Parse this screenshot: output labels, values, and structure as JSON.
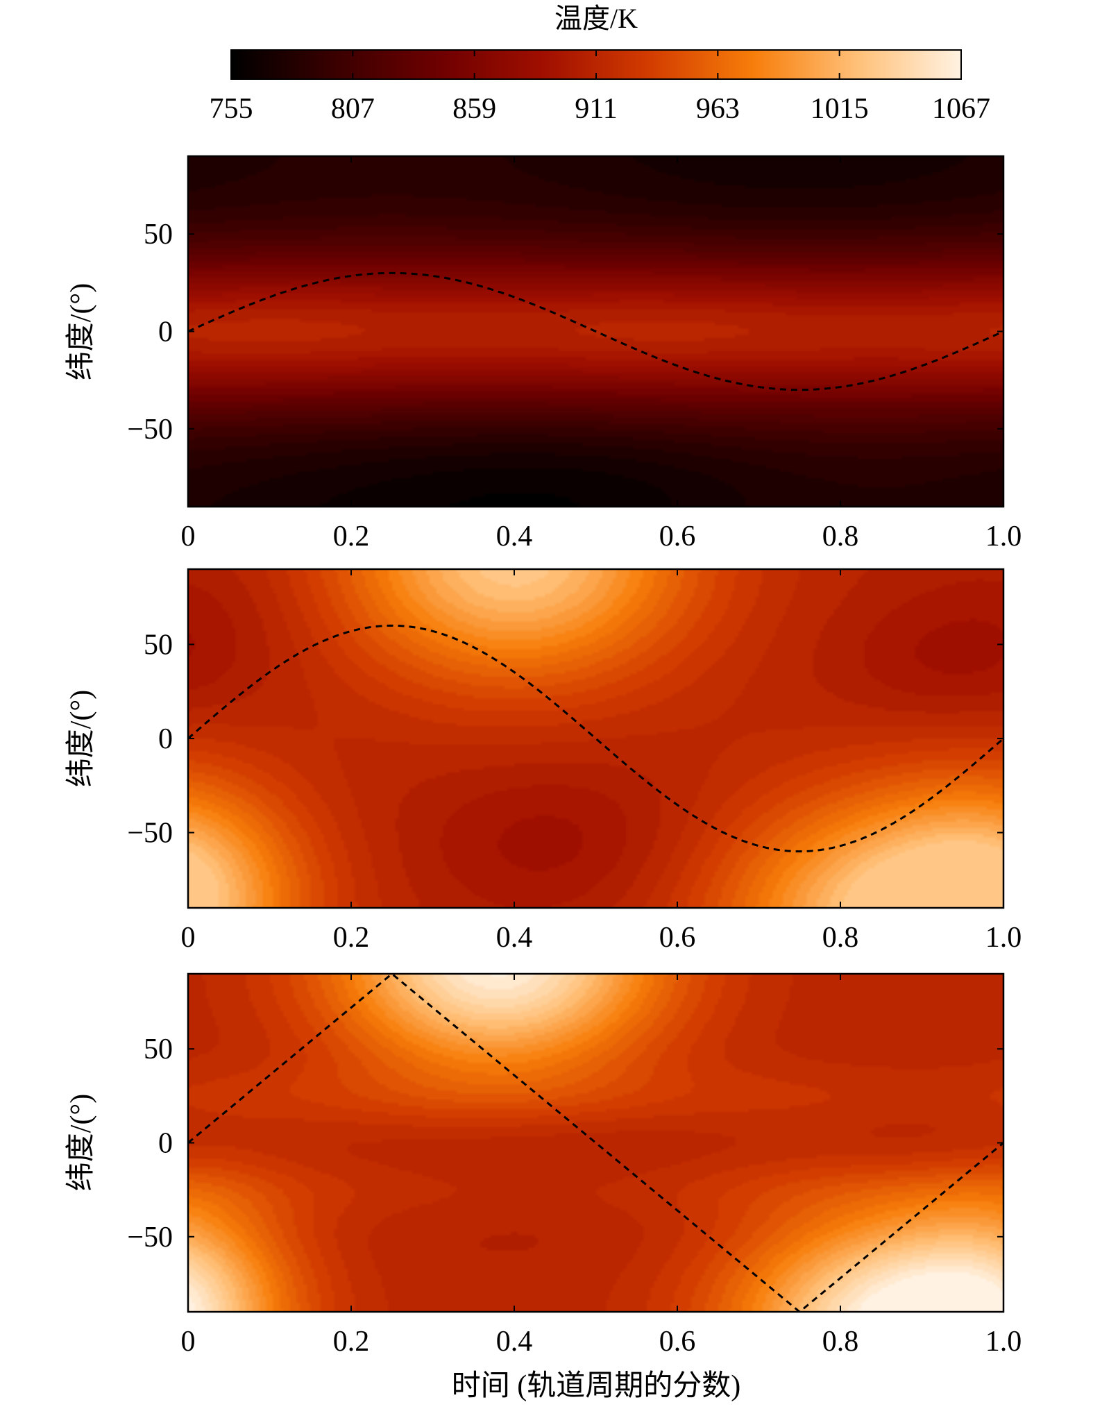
{
  "chart_data": {
    "type": "heatmap",
    "colorbar": {
      "label": "温度/K",
      "ticks": [
        755,
        807,
        859,
        911,
        963,
        1015,
        1067
      ],
      "range": [
        755,
        1067
      ],
      "colormap": "gist_heat",
      "color_stops": [
        "#000000",
        "#3a0000",
        "#6e0000",
        "#a00f00",
        "#d23c00",
        "#f77d0a",
        "#ffc078",
        "#fff2e2"
      ]
    },
    "xlabel": "时间 (轨道周期的分数)",
    "panels": [
      {
        "ylabel": "纬度/(°)",
        "x_ticks": [
          "0",
          "0.2",
          "0.4",
          "0.6",
          "0.8",
          "1.0"
        ],
        "y_ticks": [
          "50",
          "0",
          "−50"
        ],
        "xlim": [
          0,
          1
        ],
        "ylim": [
          -90,
          90
        ],
        "subsolar_amplitude_deg": 30,
        "subsolar_shape": "sine",
        "temperature_range": [
          755,
          925
        ]
      },
      {
        "ylabel": "纬度/(°)",
        "x_ticks": [
          "0",
          "0.2",
          "0.4",
          "0.6",
          "0.8",
          "1.0"
        ],
        "y_ticks": [
          "50",
          "0",
          "−50"
        ],
        "xlim": [
          0,
          1
        ],
        "ylim": [
          -90,
          90
        ],
        "subsolar_amplitude_deg": 60,
        "subsolar_shape": "sine",
        "temperature_range": [
          860,
          1030
        ]
      },
      {
        "ylabel": "纬度/(°)",
        "x_ticks": [
          "0",
          "0.2",
          "0.4",
          "0.6",
          "0.8",
          "1.0"
        ],
        "y_ticks": [
          "50",
          "0",
          "−50"
        ],
        "xlim": [
          0,
          1
        ],
        "ylim": [
          -90,
          90
        ],
        "subsolar_amplitude_deg": 90,
        "subsolar_shape": "triangle",
        "temperature_range": [
          865,
          1067
        ]
      }
    ]
  }
}
